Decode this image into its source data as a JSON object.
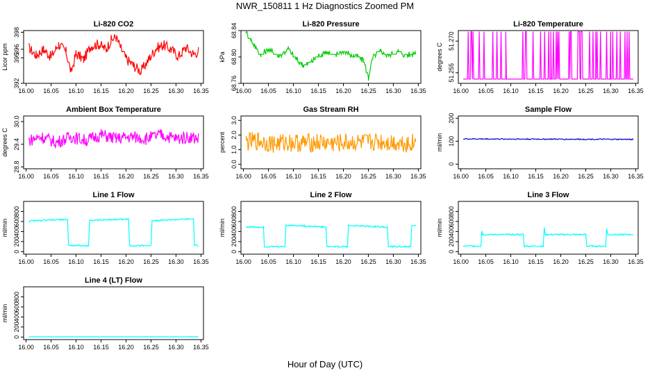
{
  "title": "NWR_150811  1 Hz Diagnostics Zoomed PM",
  "xlabel": "Hour of Day (UTC)",
  "chart_data": [
    {
      "type": "line",
      "title": "Li-820 CO2",
      "ylabel": "Licor ppm",
      "color": "#ff0000",
      "x_ticks": [
        "16.00",
        "16.05",
        "16.10",
        "16.15",
        "16.20",
        "16.25",
        "16.30",
        "16.35"
      ],
      "y_ticks": [
        {
          "v": 392,
          "label": "392"
        },
        {
          "v": 395,
          "label": "395"
        },
        {
          "v": 396,
          "label": "396"
        },
        {
          "v": 398,
          "label": "398"
        }
      ],
      "ylim": [
        392,
        398.2
      ],
      "xlim": [
        15.995,
        16.355
      ],
      "series": [
        {
          "name": "CO2",
          "x": [
            16.005,
            16.02,
            16.035,
            16.05,
            16.065,
            16.08,
            16.09,
            16.1,
            16.115,
            16.13,
            16.145,
            16.16,
            16.17,
            16.18,
            16.19,
            16.2,
            16.215,
            16.23,
            16.245,
            16.26,
            16.275,
            16.29,
            16.305,
            16.32,
            16.335,
            16.345
          ],
          "values": [
            396.2,
            395.3,
            396.0,
            395.1,
            396.6,
            395.7,
            393.3,
            395.5,
            394.8,
            396.4,
            396.6,
            396.0,
            397.1,
            397.4,
            396.1,
            394.9,
            394.1,
            393.4,
            394.8,
            396.1,
            396.5,
            396.0,
            395.2,
            396.2,
            395.4,
            395.8
          ]
        }
      ]
    },
    {
      "type": "line",
      "title": "Li-820 Pressure",
      "ylabel": "kPa",
      "color": "#00cc00",
      "x_ticks": [
        "16.00",
        "16.05",
        "16.10",
        "16.15",
        "16.20",
        "16.25",
        "16.30",
        "16.35"
      ],
      "y_ticks": [
        {
          "v": 68.76,
          "label": "68.76"
        },
        {
          "v": 68.8,
          "label": "68.80"
        },
        {
          "v": 68.84,
          "label": "68.84"
        }
      ],
      "ylim": [
        68.76,
        68.84
      ],
      "xlim": [
        15.995,
        16.355
      ],
      "series": [
        {
          "name": "Pressure",
          "x": [
            16.005,
            16.015,
            16.025,
            16.035,
            16.05,
            16.07,
            16.09,
            16.105,
            16.12,
            16.135,
            16.15,
            16.165,
            16.18,
            16.2,
            16.22,
            16.24,
            16.25,
            16.26,
            16.275,
            16.29,
            16.31,
            16.33,
            16.345
          ],
          "values": [
            68.838,
            68.826,
            68.814,
            68.802,
            68.812,
            68.802,
            68.812,
            68.796,
            68.788,
            68.792,
            68.802,
            68.808,
            68.802,
            68.808,
            68.802,
            68.796,
            68.768,
            68.802,
            68.808,
            68.802,
            68.808,
            68.802,
            68.808
          ]
        }
      ]
    },
    {
      "type": "line",
      "title": "Li-820 Temperature",
      "ylabel": "degrees C",
      "color": "#ff00ff",
      "x_ticks": [
        "16.00",
        "16.05",
        "16.10",
        "16.15",
        "16.20",
        "16.25",
        "16.30",
        "16.35"
      ],
      "y_ticks": [
        {
          "v": 51.255,
          "label": "51.255"
        },
        {
          "v": 51.27,
          "label": "51.270"
        }
      ],
      "ylim": [
        51.25,
        51.275
      ],
      "xlim": [
        15.995,
        16.355
      ],
      "series": [
        {
          "name": "Temperature",
          "x": [
            16.005,
            16.03,
            16.06,
            16.09,
            16.12,
            16.15,
            16.18,
            16.21,
            16.24,
            16.27,
            16.3,
            16.33,
            16.345
          ],
          "values": [
            51.252,
            51.274,
            51.252,
            51.274,
            51.252,
            51.274,
            51.252,
            51.274,
            51.252,
            51.274,
            51.252,
            51.274,
            51.252
          ]
        }
      ]
    },
    {
      "type": "line",
      "title": "Ambient Box Temperature",
      "ylabel": "degrees C",
      "color": "#ff00ff",
      "x_ticks": [
        "16.00",
        "16.05",
        "16.10",
        "16.15",
        "16.20",
        "16.25",
        "16.30",
        "16.35"
      ],
      "y_ticks": [
        {
          "v": 28.8,
          "label": "28.8"
        },
        {
          "v": 29.4,
          "label": "29.4"
        },
        {
          "v": 30.0,
          "label": "30.0"
        }
      ],
      "ylim": [
        28.75,
        30.15
      ],
      "xlim": [
        15.995,
        16.355
      ],
      "series": [
        {
          "name": "Ambient",
          "x": [
            16.005,
            16.03,
            16.06,
            16.09,
            16.12,
            16.15,
            16.18,
            16.21,
            16.24,
            16.27,
            16.3,
            16.33,
            16.345
          ],
          "values": [
            29.5,
            29.6,
            29.45,
            29.6,
            29.5,
            29.65,
            29.55,
            29.6,
            29.55,
            29.65,
            29.55,
            29.6,
            29.55
          ]
        }
      ]
    },
    {
      "type": "line",
      "title": "Gas Stream RH",
      "ylabel": "percent",
      "color": "#ff9900",
      "x_ticks": [
        "16.00",
        "16.05",
        "16.10",
        "16.15",
        "16.20",
        "16.25",
        "16.30",
        "16.35"
      ],
      "y_ticks": [
        {
          "v": 0,
          "label": "0.0"
        },
        {
          "v": 1,
          "label": "1.0"
        },
        {
          "v": 2,
          "label": "2.0"
        },
        {
          "v": 3,
          "label": "3.0"
        }
      ],
      "ylim": [
        -0.3,
        3.3
      ],
      "xlim": [
        15.995,
        16.355
      ],
      "series": [
        {
          "name": "RH",
          "x": [
            16.005,
            16.03,
            16.06,
            16.09,
            16.12,
            16.15,
            16.18,
            16.21,
            16.24,
            16.27,
            16.3,
            16.33,
            16.345
          ],
          "values": [
            1.5,
            1.6,
            1.4,
            1.5,
            1.45,
            1.5,
            1.4,
            1.5,
            1.45,
            1.55,
            1.5,
            1.45,
            1.5
          ]
        }
      ]
    },
    {
      "type": "line",
      "title": "Sample Flow",
      "ylabel": "ml/min",
      "color": "#0000cc",
      "x_ticks": [
        "16.00",
        "16.05",
        "16.10",
        "16.15",
        "16.20",
        "16.25",
        "16.30",
        "16.35"
      ],
      "y_ticks": [
        {
          "v": 0,
          "label": "0"
        },
        {
          "v": 100,
          "label": "100"
        },
        {
          "v": 200,
          "label": "200"
        }
      ],
      "ylim": [
        -20,
        210
      ],
      "xlim": [
        15.995,
        16.355
      ],
      "series": [
        {
          "name": "Sample",
          "x": [
            16.005,
            16.345
          ],
          "values": [
            110,
            108
          ]
        }
      ]
    },
    {
      "type": "line",
      "title": "Line 1 Flow",
      "ylabel": "ml/min",
      "color": "#00ffff",
      "x_ticks": [
        "16.00",
        "16.05",
        "16.10",
        "16.15",
        "16.20",
        "16.25",
        "16.30",
        "16.35"
      ],
      "y_ticks": [
        {
          "v": 0,
          "label": "0"
        },
        {
          "v": 200,
          "label": "200"
        },
        {
          "v": 400,
          "label": "400"
        },
        {
          "v": 600,
          "label": "600"
        },
        {
          "v": 800,
          "label": "800"
        }
      ],
      "ylim": [
        -50,
        1000
      ],
      "xlim": [
        15.995,
        16.355
      ],
      "series": [
        {
          "name": "Line1",
          "x": [
            16.005,
            16.083,
            16.085,
            16.125,
            16.127,
            16.205,
            16.207,
            16.25,
            16.252,
            16.335,
            16.337,
            16.345
          ],
          "values": [
            610,
            640,
            120,
            120,
            620,
            650,
            120,
            120,
            620,
            650,
            120,
            120
          ]
        }
      ]
    },
    {
      "type": "line",
      "title": "Line 2 Flow",
      "ylabel": "ml/min",
      "color": "#00ffff",
      "x_ticks": [
        "16.00",
        "16.05",
        "16.10",
        "16.15",
        "16.20",
        "16.25",
        "16.30",
        "16.35"
      ],
      "y_ticks": [
        {
          "v": 0,
          "label": "0"
        },
        {
          "v": 200,
          "label": "200"
        },
        {
          "v": 400,
          "label": "400"
        },
        {
          "v": 600,
          "label": "600"
        },
        {
          "v": 800,
          "label": "800"
        }
      ],
      "ylim": [
        -50,
        1000
      ],
      "xlim": [
        15.995,
        16.355
      ],
      "series": [
        {
          "name": "Line2",
          "x": [
            16.005,
            16.04,
            16.042,
            16.083,
            16.085,
            16.165,
            16.167,
            16.208,
            16.21,
            16.288,
            16.29,
            16.335,
            16.337,
            16.345
          ],
          "values": [
            490,
            490,
            100,
            100,
            530,
            490,
            100,
            100,
            520,
            490,
            100,
            100,
            520,
            520
          ]
        }
      ]
    },
    {
      "type": "line",
      "title": "Line 3 Flow",
      "ylabel": "ml/min",
      "color": "#00ffff",
      "x_ticks": [
        "16.00",
        "16.05",
        "16.10",
        "16.15",
        "16.20",
        "16.25",
        "16.30",
        "16.35"
      ],
      "y_ticks": [
        {
          "v": 0,
          "label": "0"
        },
        {
          "v": 200,
          "label": "200"
        },
        {
          "v": 400,
          "label": "400"
        },
        {
          "v": 600,
          "label": "600"
        },
        {
          "v": 800,
          "label": "800"
        }
      ],
      "ylim": [
        -50,
        1000
      ],
      "xlim": [
        15.995,
        16.355
      ],
      "series": [
        {
          "name": "Line3",
          "x": [
            16.005,
            16.04,
            16.042,
            16.044,
            16.125,
            16.127,
            16.165,
            16.167,
            16.169,
            16.25,
            16.252,
            16.29,
            16.292,
            16.294,
            16.345
          ],
          "values": [
            110,
            110,
            420,
            340,
            340,
            110,
            110,
            470,
            340,
            340,
            110,
            110,
            460,
            340,
            340
          ]
        }
      ]
    },
    {
      "type": "line",
      "title": "Line 4 (LT) Flow",
      "ylabel": "ml/min",
      "color": "#00ffff",
      "x_ticks": [
        "16.00",
        "16.05",
        "16.10",
        "16.15",
        "16.20",
        "16.25",
        "16.30",
        "16.35"
      ],
      "y_ticks": [
        {
          "v": 0,
          "label": "0"
        },
        {
          "v": 200,
          "label": "200"
        },
        {
          "v": 400,
          "label": "400"
        },
        {
          "v": 600,
          "label": "600"
        },
        {
          "v": 800,
          "label": "800"
        }
      ],
      "ylim": [
        -50,
        1000
      ],
      "xlim": [
        15.995,
        16.355
      ],
      "series": [
        {
          "name": "Line4",
          "x": [
            16.005,
            16.345
          ],
          "values": [
            5,
            5
          ]
        }
      ]
    }
  ]
}
